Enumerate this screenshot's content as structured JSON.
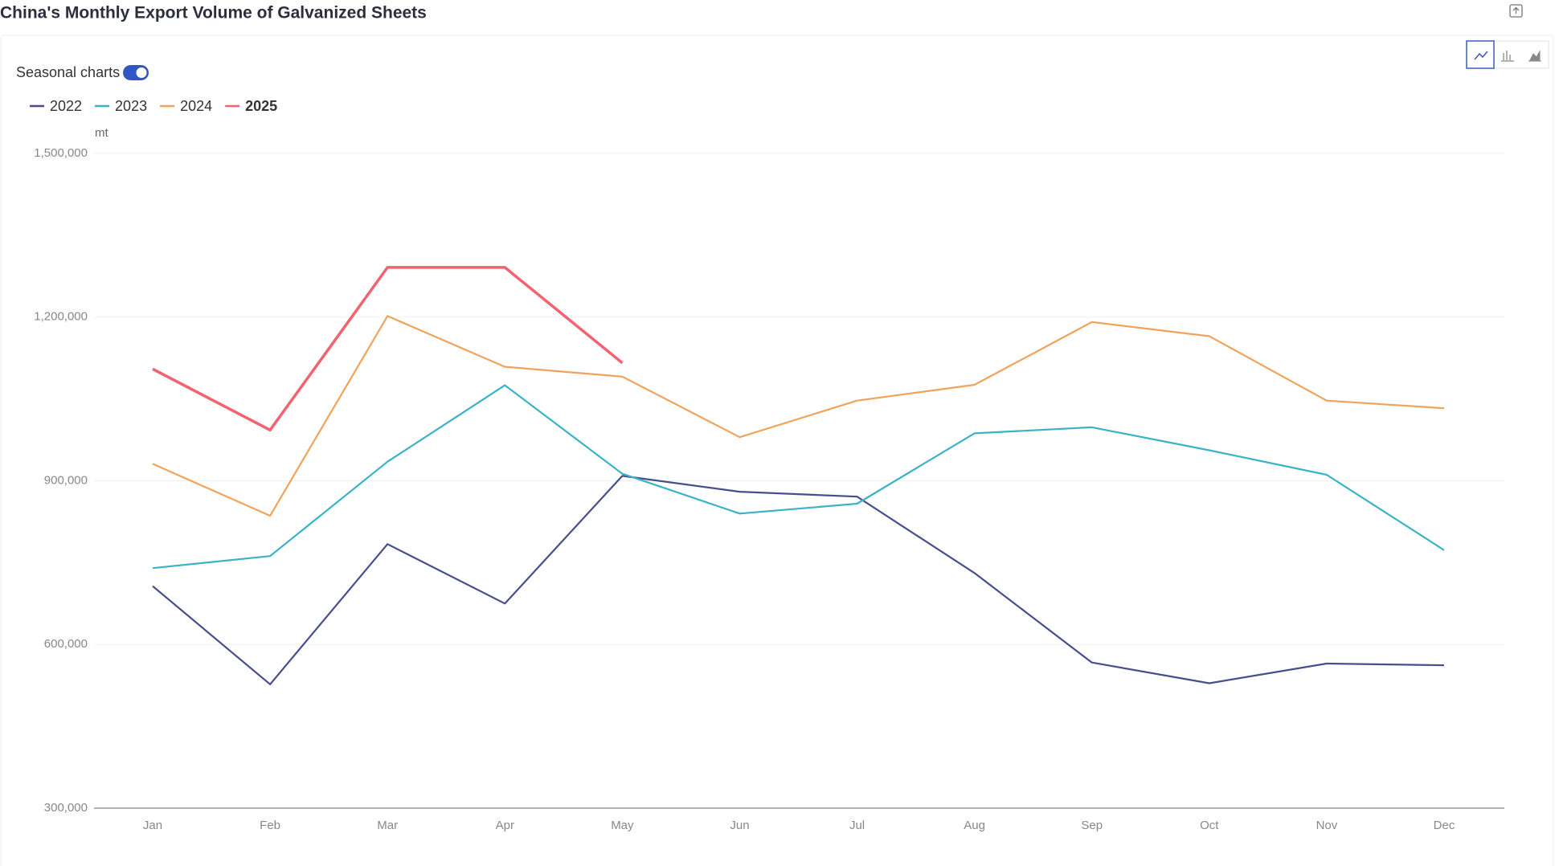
{
  "chart_data": {
    "type": "line",
    "title": "China's Monthly Export Volume of Galvanized Sheets",
    "toggle_label": "Seasonal charts",
    "y_unit": "mt",
    "categories": [
      "Jan",
      "Feb",
      "Mar",
      "Apr",
      "May",
      "Jun",
      "Jul",
      "Aug",
      "Sep",
      "Oct",
      "Nov",
      "Dec"
    ],
    "series": [
      {
        "name": "2022",
        "color": "#464f8c",
        "values": [
          707000,
          527000,
          784000,
          675000,
          909000,
          880000,
          871000,
          731000,
          567000,
          529000,
          565000,
          562000
        ]
      },
      {
        "name": "2023",
        "color": "#3ab3c6",
        "values": [
          740000,
          762000,
          935000,
          1075000,
          913000,
          840000,
          858000,
          987000,
          998000,
          956000,
          911000,
          773000
        ]
      },
      {
        "name": "2024",
        "color": "#f0a35a",
        "values": [
          931000,
          836000,
          1202000,
          1109000,
          1091000,
          980000,
          1047000,
          1076000,
          1191000,
          1165000,
          1047000,
          1033000
        ]
      },
      {
        "name": "2025",
        "color": "#f2636f",
        "values": [
          1105000,
          993000,
          1291000,
          1291000,
          1116000,
          null,
          null,
          null,
          null,
          null,
          null,
          null
        ]
      }
    ],
    "ylim": [
      300000,
      1500000
    ],
    "yticks": [
      {
        "value": 300000,
        "label": "300,000"
      },
      {
        "value": 600000,
        "label": "600,000"
      },
      {
        "value": 900000,
        "label": "900,000"
      },
      {
        "value": 1200000,
        "label": "1,200,000"
      },
      {
        "value": 1500000,
        "label": "1,500,000"
      }
    ],
    "grid": true
  }
}
